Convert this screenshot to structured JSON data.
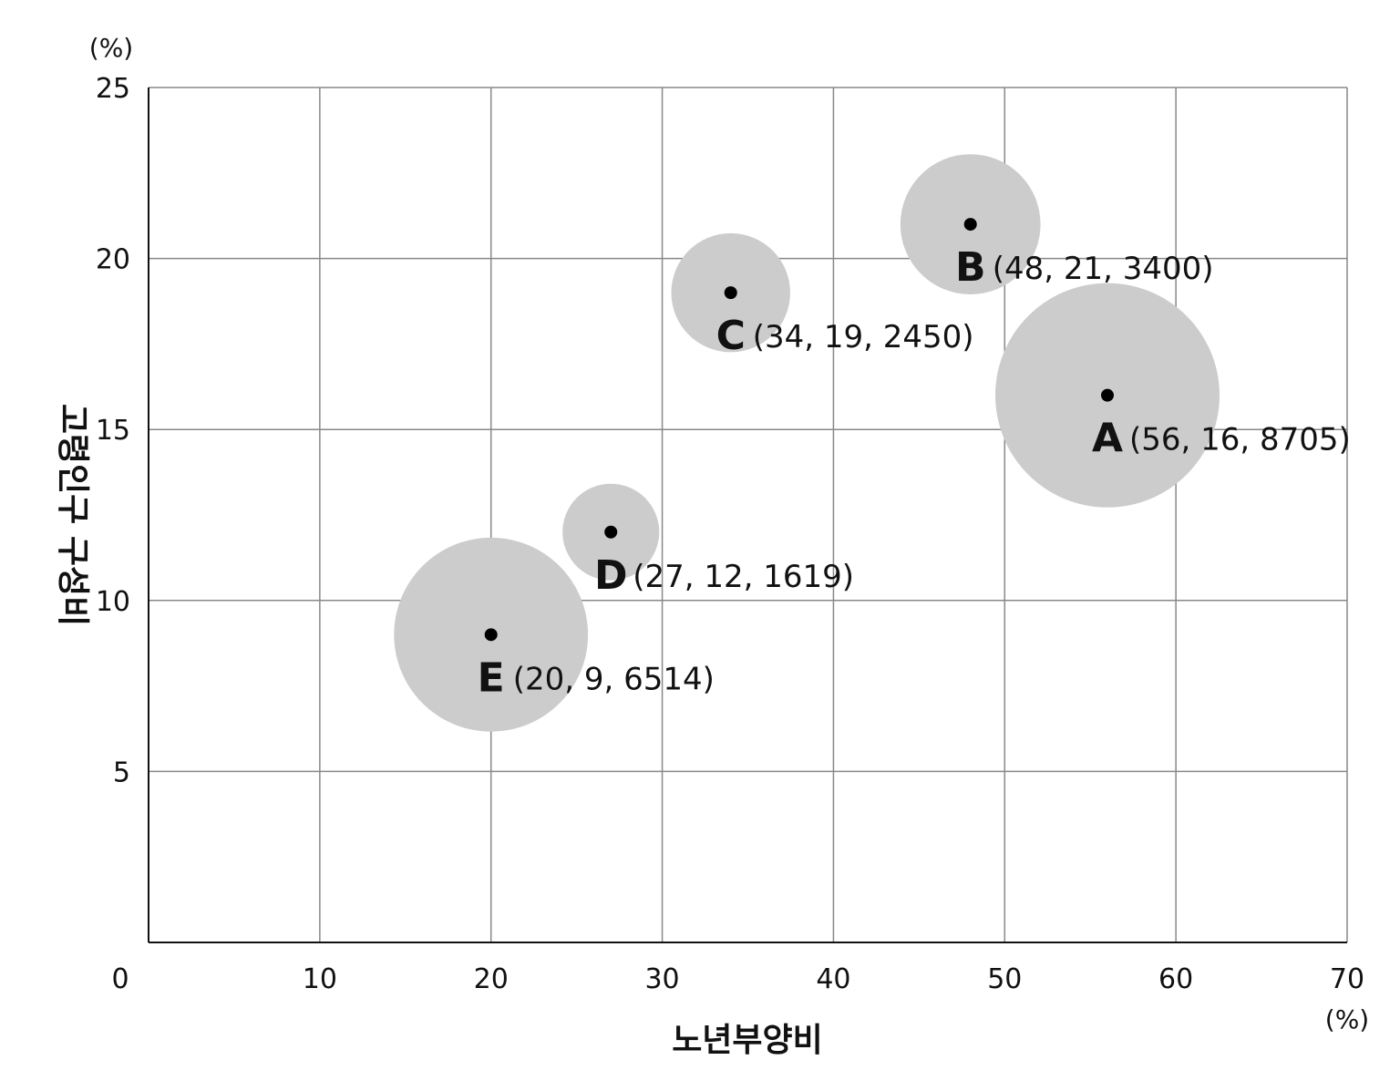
{
  "chart_data": {
    "type": "scatter",
    "variant": "bubble",
    "title": "",
    "xlabel": "노년부양비",
    "ylabel": "고령인구 구성비",
    "x_unit": "(%)",
    "y_unit": "(%)",
    "xlim": [
      0,
      70
    ],
    "ylim": [
      0,
      25
    ],
    "x_ticks": [
      0,
      10,
      20,
      30,
      40,
      50,
      60,
      70
    ],
    "y_ticks": [
      5,
      10,
      15,
      20,
      25
    ],
    "grid": true,
    "bubble_color": "#cccccc",
    "point_color": "#000000",
    "grid_color": "#888888",
    "points": [
      {
        "name": "A",
        "x": 56,
        "y": 16,
        "size": 8705,
        "detail": "(56, 16, 8705)"
      },
      {
        "name": "B",
        "x": 48,
        "y": 21,
        "size": 3400,
        "detail": "(48, 21, 3400)"
      },
      {
        "name": "C",
        "x": 34,
        "y": 19,
        "size": 2450,
        "detail": "(34, 19, 2450)"
      },
      {
        "name": "D",
        "x": 27,
        "y": 12,
        "size": 1619,
        "detail": "(27, 12, 1619)"
      },
      {
        "name": "E",
        "x": 20,
        "y": 9,
        "size": 6514,
        "detail": "(20, 9, 6514)"
      }
    ]
  }
}
